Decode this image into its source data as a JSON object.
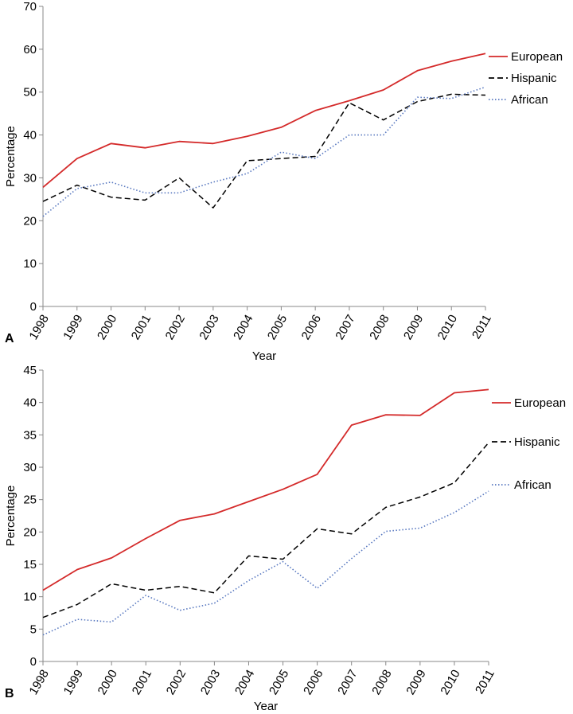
{
  "chart_data": [
    {
      "panel": "A",
      "type": "line",
      "xlabel": "Year",
      "ylabel": "Percentage",
      "ylim": [
        0,
        70
      ],
      "ytick_step": 10,
      "grid": false,
      "legend_position": "right",
      "categories": [
        "1998",
        "1999",
        "2000",
        "2001",
        "2002",
        "2003",
        "2004",
        "2005",
        "2006",
        "2007",
        "2008",
        "2009",
        "2010",
        "2011"
      ],
      "series": [
        {
          "name": "European",
          "color": "#d42a2a",
          "style": "solid",
          "values": [
            27.8,
            34.5,
            38.0,
            37.0,
            38.5,
            38.0,
            39.7,
            41.8,
            45.7,
            48.0,
            50.5,
            55.0,
            57.2,
            59.0
          ]
        },
        {
          "name": "Hispanic",
          "color": "#000000",
          "style": "dashed",
          "values": [
            24.5,
            28.3,
            25.5,
            24.8,
            30.0,
            23.0,
            34.0,
            34.5,
            35.0,
            47.5,
            43.5,
            47.8,
            49.5,
            49.3
          ]
        },
        {
          "name": "African",
          "color": "#5878c0",
          "style": "dotted",
          "values": [
            21.0,
            27.5,
            29.0,
            26.5,
            26.5,
            29.0,
            31.0,
            36.0,
            34.5,
            40.0,
            40.0,
            48.8,
            48.5,
            51.2
          ]
        }
      ]
    },
    {
      "panel": "B",
      "type": "line",
      "xlabel": "Year",
      "ylabel": "Percentage",
      "ylim": [
        0,
        45
      ],
      "ytick_step": 5,
      "grid": false,
      "legend_position": "right",
      "categories": [
        "1998",
        "1999",
        "2000",
        "2001",
        "2002",
        "2003",
        "2004",
        "2005",
        "2006",
        "2007",
        "2008",
        "2009",
        "2010",
        "2011"
      ],
      "series": [
        {
          "name": "European",
          "color": "#d42a2a",
          "style": "solid",
          "values": [
            11.0,
            14.2,
            16.0,
            19.0,
            21.8,
            22.8,
            24.7,
            26.6,
            28.9,
            36.5,
            38.1,
            38.0,
            41.5,
            42.0
          ]
        },
        {
          "name": "Hispanic",
          "color": "#000000",
          "style": "dashed",
          "values": [
            6.8,
            8.8,
            12.0,
            11.0,
            11.6,
            10.6,
            16.3,
            15.8,
            20.5,
            19.7,
            23.8,
            25.4,
            27.6,
            33.8
          ]
        },
        {
          "name": "African",
          "color": "#5878c0",
          "style": "dotted",
          "values": [
            4.1,
            6.5,
            6.1,
            10.2,
            7.9,
            9.0,
            12.5,
            15.4,
            11.3,
            15.9,
            20.1,
            20.6,
            23.0,
            26.3
          ]
        }
      ]
    }
  ]
}
